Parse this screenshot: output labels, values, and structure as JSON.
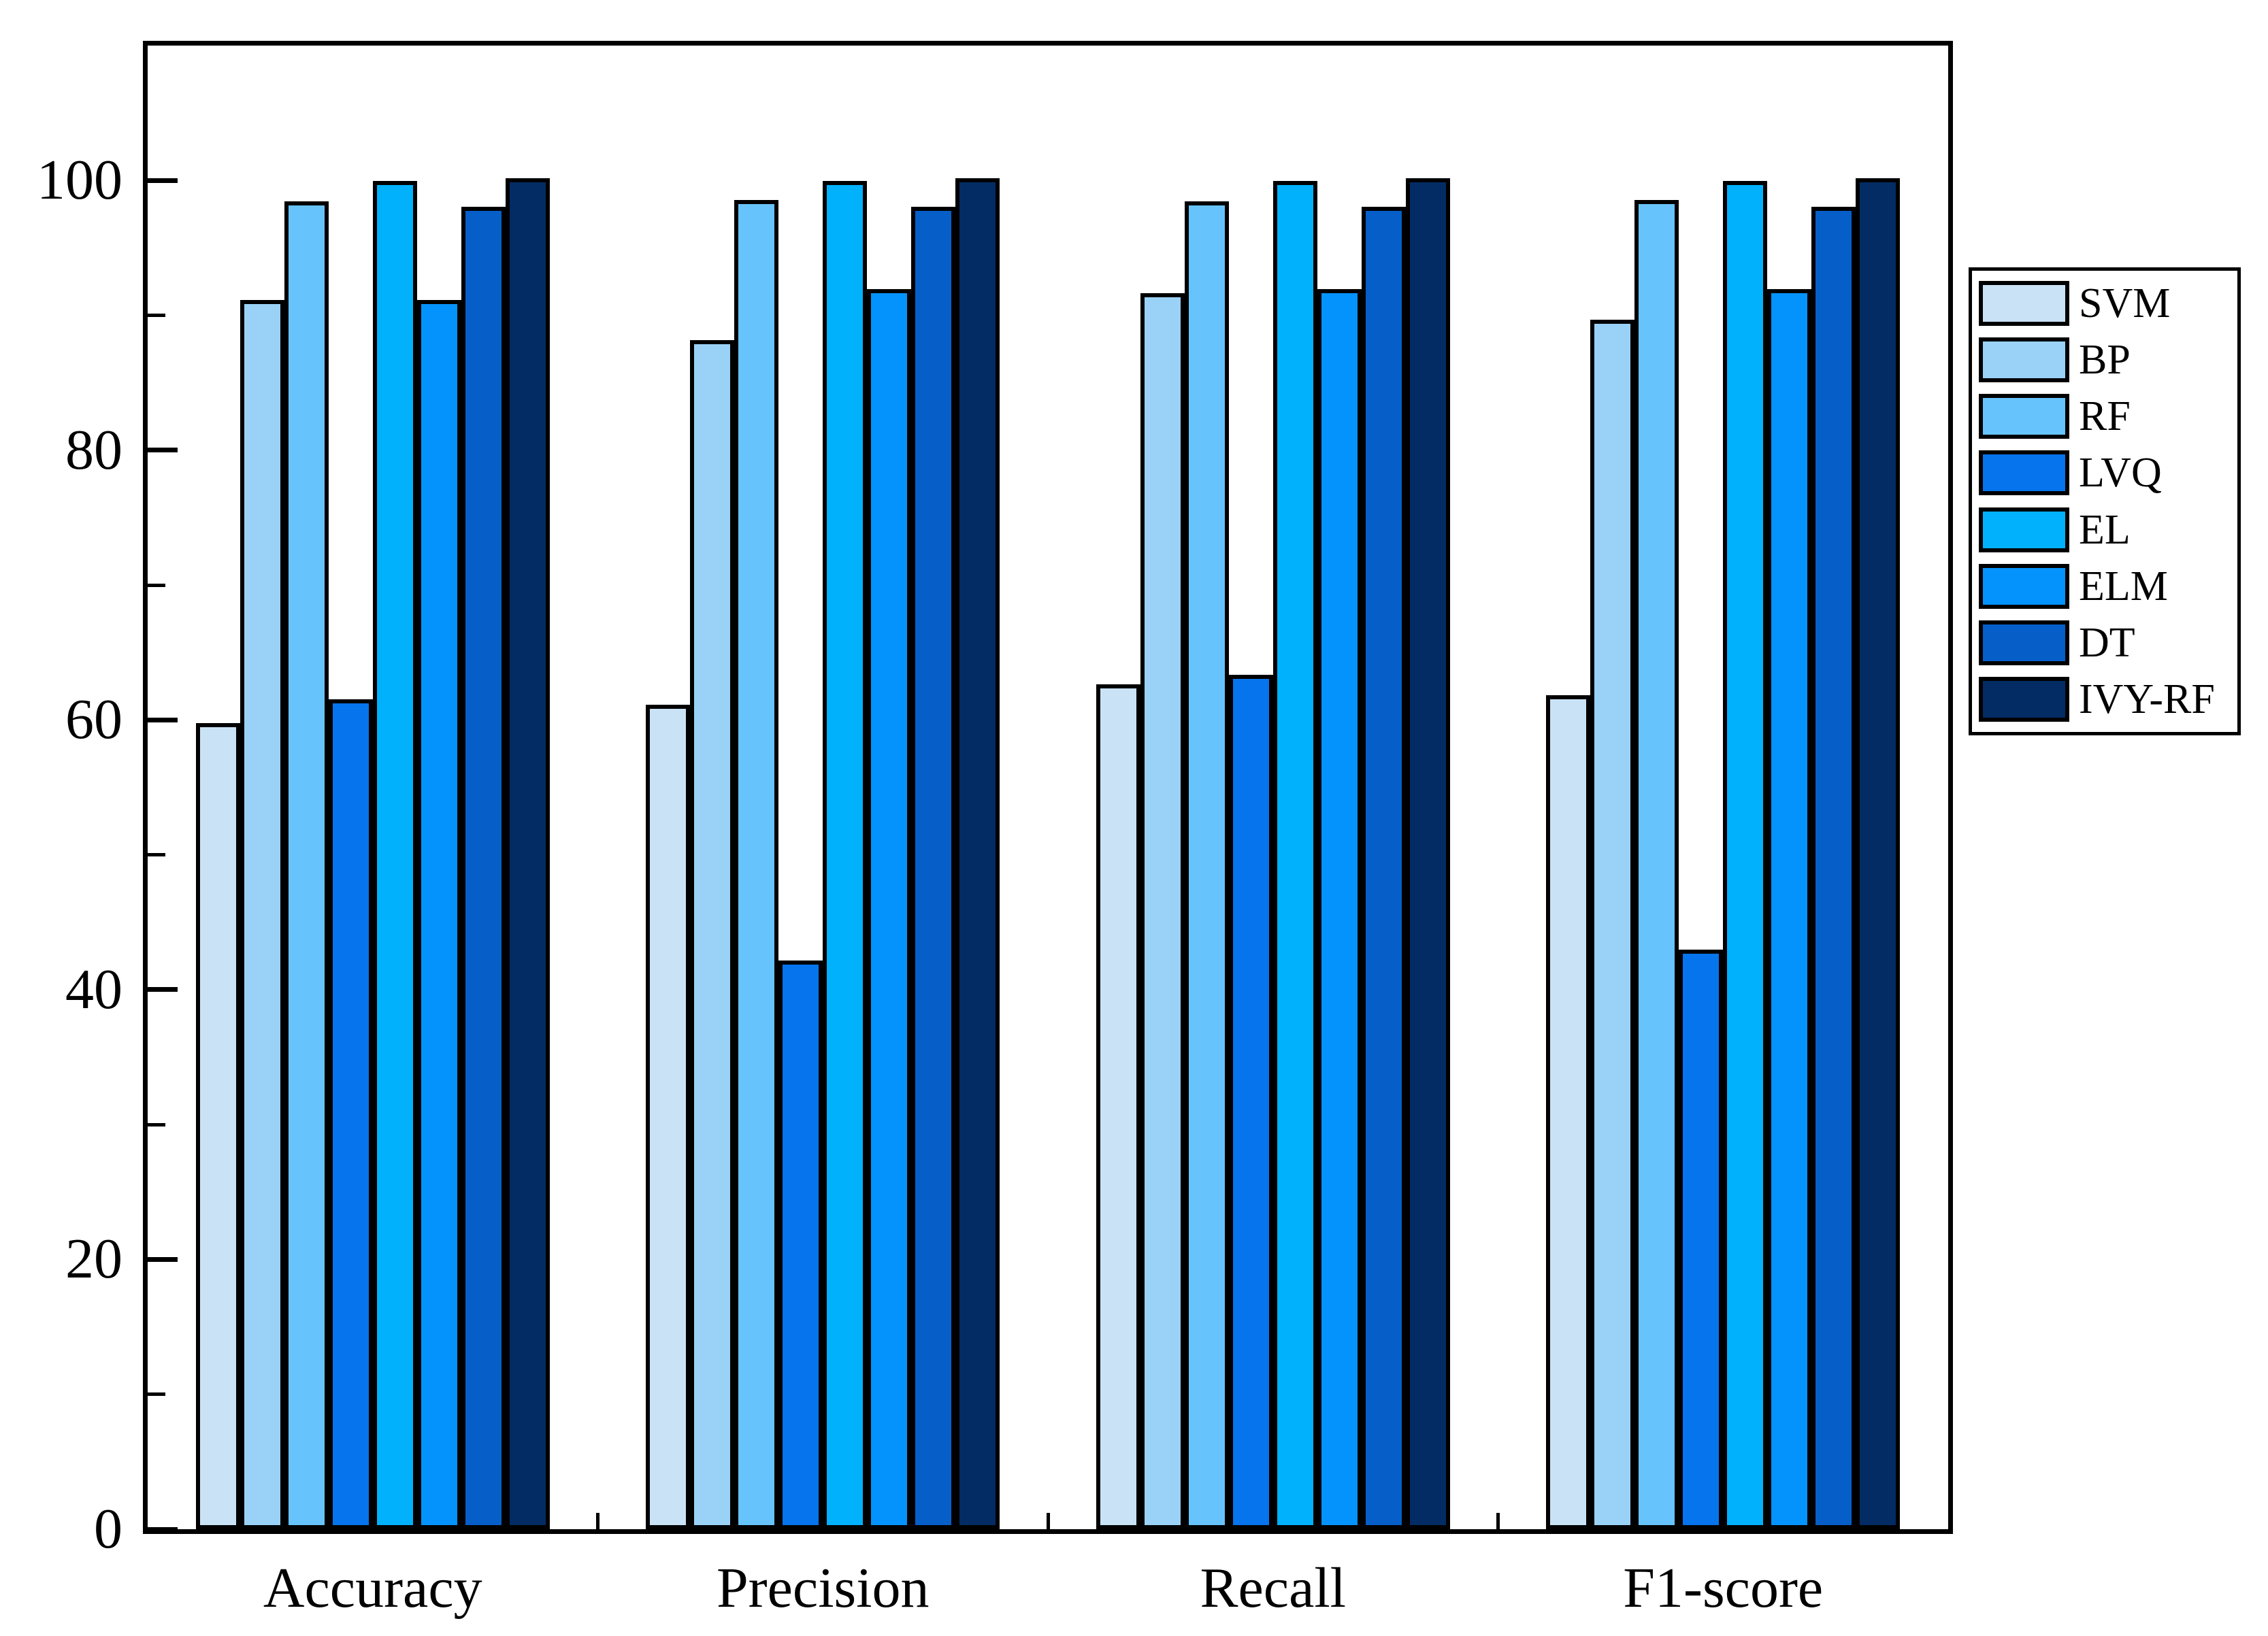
{
  "chart_data": {
    "type": "bar",
    "title": "",
    "xlabel": "",
    "ylabel": "",
    "categories": [
      "Accuracy",
      "Precision",
      "Recall",
      "F1-score"
    ],
    "series": [
      {
        "name": "SVM",
        "color": "#C9E2F6",
        "values": [
          59.6,
          61.0,
          62.5,
          61.7
        ]
      },
      {
        "name": "BP",
        "color": "#9AD2F7",
        "values": [
          91.0,
          88.0,
          91.5,
          89.5
        ]
      },
      {
        "name": "RF",
        "color": "#67C3FB",
        "values": [
          98.3,
          98.4,
          98.3,
          98.4
        ]
      },
      {
        "name": "LVQ",
        "color": "#0674EC",
        "values": [
          61.4,
          42.0,
          63.2,
          42.8
        ]
      },
      {
        "name": "EL",
        "color": "#01B1FB",
        "values": [
          99.8,
          99.8,
          99.8,
          99.8
        ]
      },
      {
        "name": "ELM",
        "color": "#0493FC",
        "values": [
          91.0,
          91.8,
          91.8,
          91.8
        ]
      },
      {
        "name": "DT",
        "color": "#065FC9",
        "values": [
          97.9,
          97.9,
          97.9,
          97.9
        ]
      },
      {
        "name": "IVY-RF",
        "color": "#032C64",
        "values": [
          100.0,
          100.0,
          100.0,
          100.0
        ]
      }
    ],
    "ylim": [
      0,
      110
    ],
    "yticks": [
      0,
      20,
      40,
      60,
      80,
      100
    ],
    "minor_yticks": [
      10,
      30,
      50,
      70,
      90
    ],
    "grid": false,
    "legend_position": "right-outside",
    "bar_border_color": "#000000",
    "frame_color": "#000000",
    "background_color": "#ffffff"
  }
}
